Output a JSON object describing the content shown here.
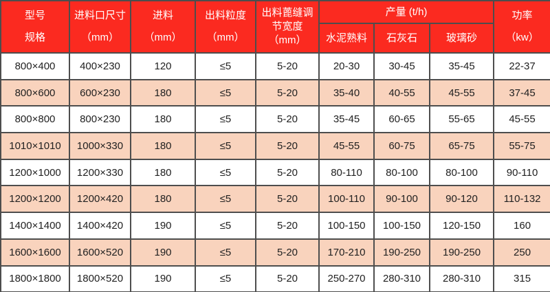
{
  "table": {
    "header": {
      "model": "型号\n规格",
      "feed_opening": "进料口尺寸\n（mm）",
      "feed": "进料\n（mm）",
      "output_size": "出料粒度\n（mm）",
      "grate_gap": "出料蓖缝调\n节宽度\n（mm）",
      "capacity": "产量 (t/h)",
      "capacity_sub": [
        "水泥熟料",
        "石灰石",
        "玻璃砂"
      ],
      "power": "功率\n（kw）"
    },
    "rows": [
      [
        "800×400",
        "400×230",
        "120",
        "≤5",
        "5-20",
        "20-30",
        "30-45",
        "35-45",
        "22-37"
      ],
      [
        "800×600",
        "600×230",
        "180",
        "≤5",
        "5-20",
        "35-40",
        "40-55",
        "45-55",
        "37-45"
      ],
      [
        "800×800",
        "800×230",
        "180",
        "≤5",
        "5-20",
        "35-45",
        "60-65",
        "55-65",
        "45-55"
      ],
      [
        "1010×1010",
        "1000×330",
        "180",
        "≤5",
        "5-20",
        "45-55",
        "60-75",
        "65-75",
        "55-75"
      ],
      [
        "1200×1000",
        "1200×330",
        "180",
        "≤5",
        "5-20",
        "80-110",
        "80-100",
        "80-100",
        "90-110"
      ],
      [
        "1200×1200",
        "1200×420",
        "180",
        "≤5",
        "5-20",
        "100-110",
        "90-100",
        "90-120",
        "110-132"
      ],
      [
        "1400×1400",
        "1400×420",
        "190",
        "≤5",
        "5-20",
        "100-150",
        "100-150",
        "120-150",
        "160"
      ],
      [
        "1600×1600",
        "1600×520",
        "190",
        "≤5",
        "5-20",
        "170-210",
        "190-250",
        "190-250",
        "250"
      ],
      [
        "1800×1800",
        "1800×520",
        "190",
        "≤5",
        "5-20",
        "250-270",
        "280-310",
        "280-310",
        "315"
      ]
    ],
    "colors": {
      "header_bg": "#fb2a20",
      "header_text": "#ffffff",
      "row_bg": "#ffffff",
      "row_alt_bg": "#f9d3bd",
      "border": "#4d4d4d",
      "text": "#212121"
    }
  }
}
